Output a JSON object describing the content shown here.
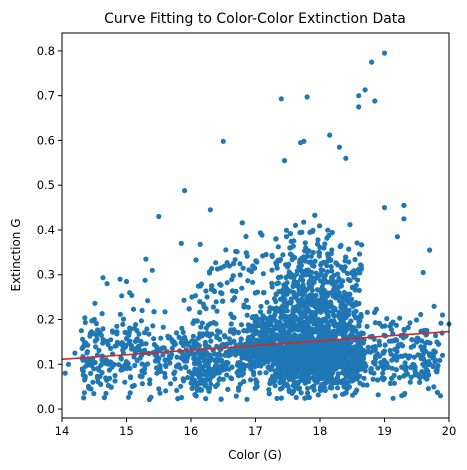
{
  "chart_data": {
    "type": "scatter",
    "title": "Curve Fitting to Color-Color Extinction Data",
    "xlabel": "Color (G)",
    "ylabel": "Extinction G",
    "xlim": [
      14,
      20
    ],
    "ylim": [
      -0.02,
      0.84
    ],
    "xticks": [
      "14",
      "15",
      "16",
      "17",
      "18",
      "19",
      "20"
    ],
    "yticks": [
      "0.0",
      "0.1",
      "0.2",
      "0.3",
      "0.4",
      "0.5",
      "0.6",
      "0.7",
      "0.8"
    ],
    "grid": false,
    "legend": "none",
    "colors": {
      "points": "#1f77b4",
      "fit_line": "#d62728"
    },
    "series": [
      {
        "type": "scatter",
        "points": [
          [
            19.0,
            0.795
          ],
          [
            18.8,
            0.775
          ],
          [
            18.7,
            0.713
          ],
          [
            18.6,
            0.7
          ],
          [
            18.85,
            0.688
          ],
          [
            18.6,
            0.675
          ],
          [
            17.4,
            0.693
          ],
          [
            17.8,
            0.697
          ],
          [
            16.5,
            0.598
          ],
          [
            17.75,
            0.598
          ],
          [
            17.7,
            0.595
          ],
          [
            18.15,
            0.612
          ],
          [
            18.3,
            0.585
          ],
          [
            17.45,
            0.555
          ],
          [
            18.4,
            0.56
          ],
          [
            15.9,
            0.488
          ],
          [
            15.5,
            0.43
          ],
          [
            16.3,
            0.445
          ],
          [
            19.0,
            0.45
          ],
          [
            19.3,
            0.455
          ],
          [
            19.3,
            0.425
          ],
          [
            19.7,
            0.355
          ],
          [
            19.2,
            0.385
          ],
          [
            19.6,
            0.305
          ],
          [
            15.3,
            0.335
          ],
          [
            15.85,
            0.37
          ],
          [
            15.4,
            0.31
          ],
          [
            15.0,
            0.285
          ],
          [
            14.9,
            0.29
          ],
          [
            15.05,
            0.26
          ],
          [
            14.7,
            0.28
          ],
          [
            14.5,
            0.2
          ],
          [
            14.3,
            0.175
          ],
          [
            14.2,
            0.125
          ],
          [
            14.1,
            0.1
          ],
          [
            14.05,
            0.08
          ],
          [
            14.35,
            0.065
          ],
          [
            14.45,
            0.045
          ],
          [
            15.5,
            0.045
          ],
          [
            19.9,
            0.21
          ],
          [
            20.0,
            0.19
          ],
          [
            19.9,
            0.12
          ],
          [
            19.8,
            0.085
          ],
          [
            19.4,
            0.06
          ],
          [
            19.75,
            0.095
          ]
        ],
        "dense_cloud": {
          "description_note": "",
          "x_center": 17.8,
          "x_spread": 0.65,
          "y_center": 0.14,
          "y_spread": 0.07,
          "count": 3200
        }
      }
    ],
    "fit_line": {
      "x": [
        14,
        20
      ],
      "y": [
        0.111,
        0.173
      ]
    }
  }
}
